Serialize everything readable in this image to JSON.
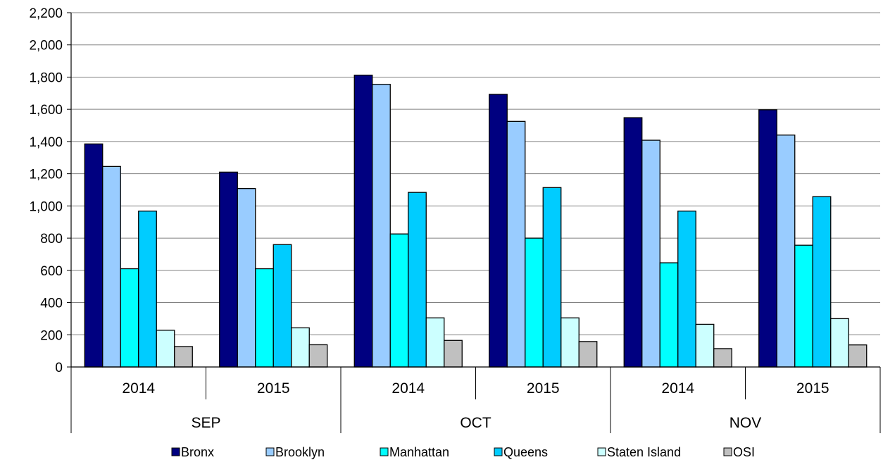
{
  "chart_data": {
    "type": "bar",
    "groups": [
      {
        "label": "SEP",
        "years": [
          "2014",
          "2015"
        ]
      },
      {
        "label": "OCT",
        "years": [
          "2014",
          "2015"
        ]
      },
      {
        "label": "NOV",
        "years": [
          "2014",
          "2015"
        ]
      }
    ],
    "categories": [
      "SEP 2014",
      "SEP 2015",
      "OCT 2014",
      "OCT 2015",
      "NOV 2014",
      "NOV 2015"
    ],
    "series": [
      {
        "name": "Bronx",
        "color": "#000080",
        "values": [
          1385,
          1210,
          1812,
          1693,
          1548,
          1597
        ]
      },
      {
        "name": "Brooklyn",
        "color": "#99ccff",
        "values": [
          1245,
          1108,
          1755,
          1525,
          1408,
          1440
        ]
      },
      {
        "name": "Manhattan",
        "color": "#00ffff",
        "values": [
          610,
          610,
          826,
          800,
          647,
          756
        ]
      },
      {
        "name": "Queens",
        "color": "#00ccff",
        "values": [
          968,
          760,
          1084,
          1114,
          968,
          1058
        ]
      },
      {
        "name": "Staten Island",
        "color": "#ccffff",
        "values": [
          228,
          243,
          305,
          305,
          265,
          300
        ]
      },
      {
        "name": "OSI",
        "color": "#c0c0c0",
        "values": [
          127,
          138,
          165,
          158,
          114,
          137
        ]
      }
    ],
    "ylim": [
      0,
      2200
    ],
    "yticks": [
      "0",
      "200",
      "400",
      "600",
      "800",
      "1,000",
      "1,200",
      "1,400",
      "1,600",
      "1,800",
      "2,000",
      "2,200"
    ],
    "grid": true,
    "legend_position": "bottom"
  }
}
